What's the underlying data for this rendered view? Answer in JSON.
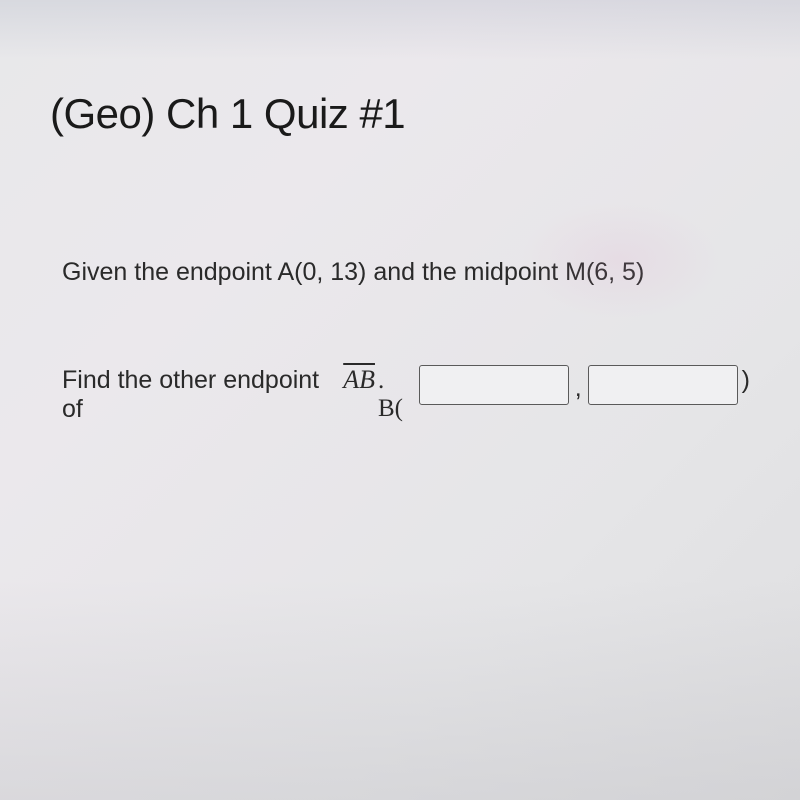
{
  "title": "(Geo) Ch 1 Quiz #1",
  "question": {
    "given_text": "Given the endpoint A(0, 13) and the midpoint M(6, 5)",
    "find_prefix": "Find the other endpoint of ",
    "segment_label": "AB",
    "period_point": ". B(",
    "comma": ",",
    "close_paren": ")"
  },
  "inputs": {
    "x_value": "",
    "y_value": ""
  },
  "style": {
    "title_fontsize": 42,
    "body_fontsize": 25,
    "title_color": "#1a1a1a",
    "body_color": "#2a2a2a",
    "input_border_color": "#5a5a5a",
    "input_bg_color": "#f0f0f2",
    "background_color": "#e8e8ea"
  }
}
